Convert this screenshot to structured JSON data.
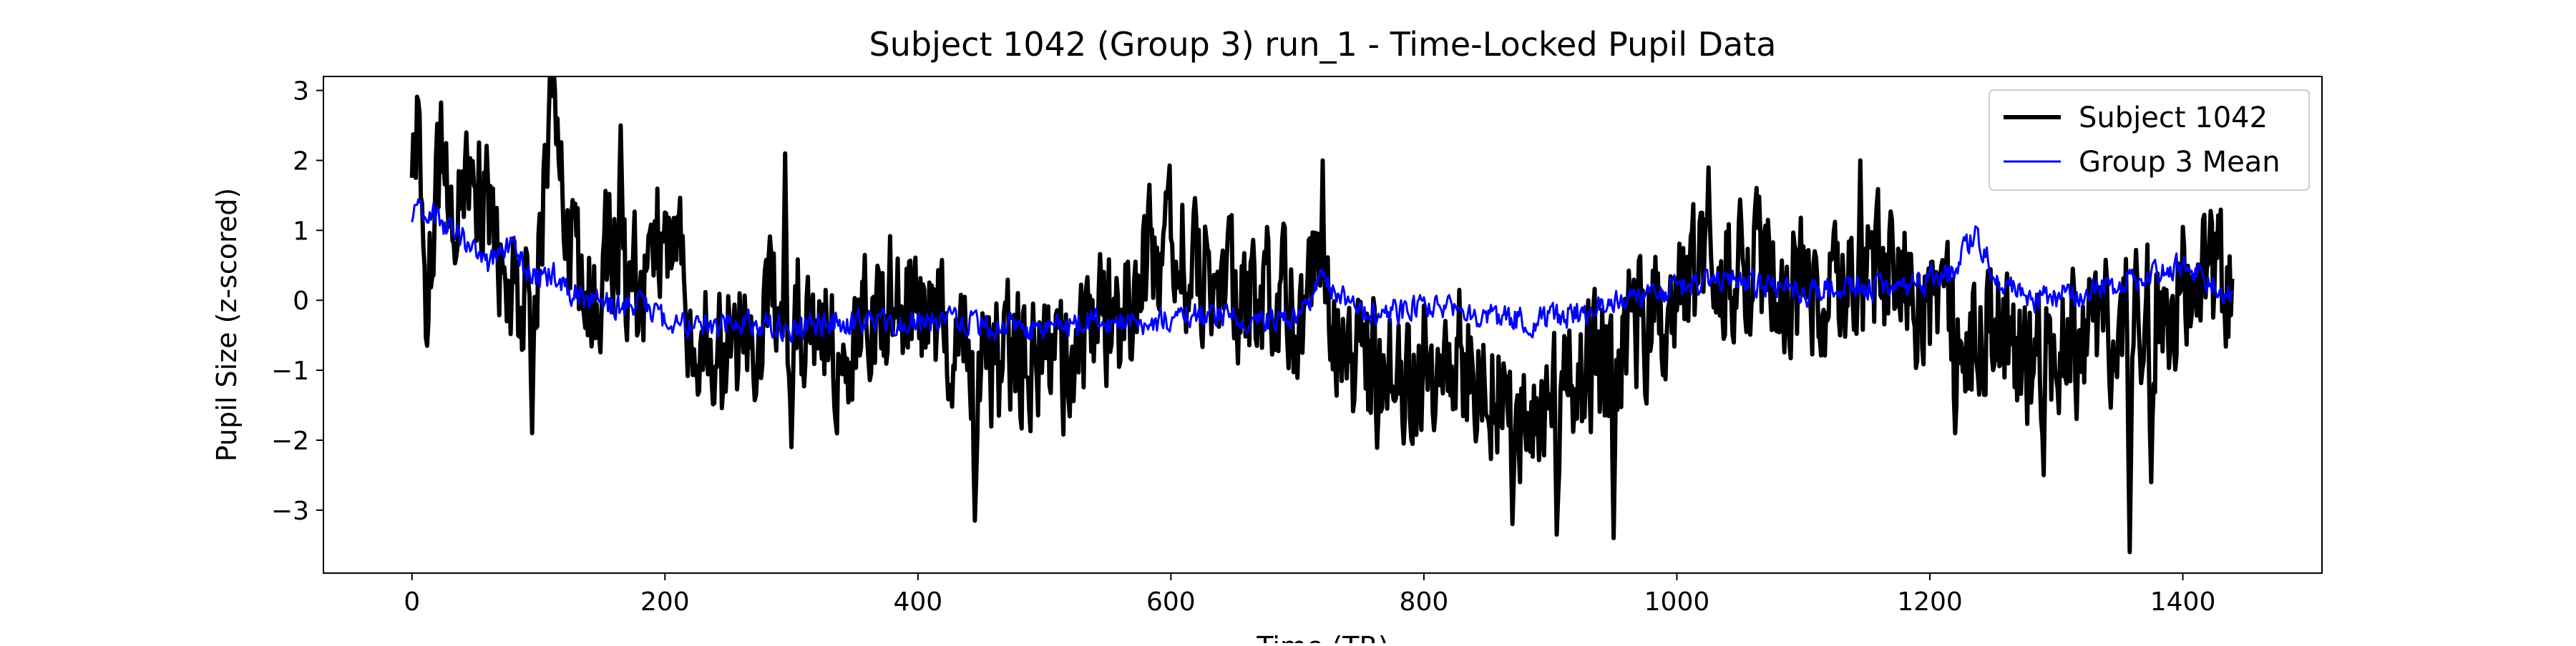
{
  "chart_data": {
    "type": "line",
    "title": "Subject 1042 (Group 3) run_1 - Time-Locked Pupil Data",
    "xlabel": "Time (TR)",
    "ylabel": "Pupil Size (z-scored)",
    "xlim": [
      -70,
      1510
    ],
    "ylim": [
      -3.9,
      3.2
    ],
    "xticks": [
      0,
      200,
      400,
      600,
      800,
      1000,
      1200,
      1400
    ],
    "yticks": [
      -3,
      -2,
      -1,
      0,
      1,
      2,
      3
    ],
    "xtick_labels": [
      "0",
      "200",
      "400",
      "600",
      "800",
      "1000",
      "1200",
      "1400"
    ],
    "ytick_labels": [
      "−3",
      "−2",
      "−1",
      "0",
      "1",
      "2",
      "3"
    ],
    "grid": false,
    "legend_position": "upper right",
    "n_points": 1440,
    "series": [
      {
        "name": "Subject 1042",
        "color": "#000000",
        "style": "thick",
        "envelope": [
          [
            0,
            1.5
          ],
          [
            5,
            2.8
          ],
          [
            12,
            -0.6
          ],
          [
            20,
            2.2
          ],
          [
            30,
            1.2
          ],
          [
            40,
            2.1
          ],
          [
            50,
            1.5
          ],
          [
            60,
            1.9
          ],
          [
            70,
            0.5
          ],
          [
            80,
            0.0
          ],
          [
            90,
            -0.3
          ],
          [
            100,
            0.4
          ],
          [
            110,
            2.5
          ],
          [
            120,
            1.5
          ],
          [
            130,
            0.5
          ],
          [
            140,
            0.0
          ],
          [
            150,
            0.5
          ],
          [
            160,
            0.8
          ],
          [
            170,
            0.2
          ],
          [
            180,
            0.3
          ],
          [
            195,
            0.9
          ],
          [
            210,
            0.5
          ],
          [
            225,
            -0.5
          ],
          [
            240,
            -1.0
          ],
          [
            260,
            -0.5
          ],
          [
            280,
            -0.2
          ],
          [
            300,
            0.0
          ],
          [
            320,
            -0.4
          ],
          [
            340,
            -0.8
          ],
          [
            360,
            -0.3
          ],
          [
            380,
            0.0
          ],
          [
            400,
            -0.2
          ],
          [
            420,
            -0.5
          ],
          [
            440,
            -0.8
          ],
          [
            460,
            -0.9
          ],
          [
            480,
            -0.7
          ],
          [
            500,
            -0.6
          ],
          [
            520,
            -1.0
          ],
          [
            540,
            -0.5
          ],
          [
            560,
            -0.2
          ],
          [
            580,
            0.4
          ],
          [
            600,
            0.8
          ],
          [
            620,
            0.5
          ],
          [
            640,
            0.1
          ],
          [
            660,
            -0.1
          ],
          [
            680,
            0.2
          ],
          [
            700,
            -0.2
          ],
          [
            715,
            0.3
          ],
          [
            730,
            -0.4
          ],
          [
            750,
            -0.8
          ],
          [
            770,
            -1.2
          ],
          [
            790,
            -1.0
          ],
          [
            810,
            -0.8
          ],
          [
            830,
            -0.8
          ],
          [
            850,
            -1.1
          ],
          [
            870,
            -1.5
          ],
          [
            890,
            -1.6
          ],
          [
            910,
            -1.4
          ],
          [
            930,
            -1.0
          ],
          [
            950,
            -0.9
          ],
          [
            970,
            -0.4
          ],
          [
            990,
            -0.2
          ],
          [
            1010,
            0.2
          ],
          [
            1030,
            0.5
          ],
          [
            1050,
            0.6
          ],
          [
            1070,
            0.4
          ],
          [
            1090,
            0.2
          ],
          [
            1110,
            0.0
          ],
          [
            1130,
            0.3
          ],
          [
            1150,
            0.5
          ],
          [
            1170,
            0.3
          ],
          [
            1190,
            0.0
          ],
          [
            1210,
            -0.2
          ],
          [
            1230,
            -0.5
          ],
          [
            1250,
            -0.4
          ],
          [
            1270,
            -0.7
          ],
          [
            1290,
            -1.0
          ],
          [
            1310,
            -0.7
          ],
          [
            1330,
            -0.5
          ],
          [
            1350,
            -0.4
          ],
          [
            1370,
            -0.2
          ],
          [
            1390,
            0.0
          ],
          [
            1410,
            0.2
          ],
          [
            1425,
            0.4
          ],
          [
            1438,
            0.1
          ]
        ],
        "fluctuation_amplitude": 1.2,
        "peaks": [
          [
            5,
            2.85
          ],
          [
            12,
            -0.65
          ],
          [
            75,
            -0.3
          ],
          [
            95,
            -1.9
          ],
          [
            115,
            2.6
          ],
          [
            165,
            2.5
          ],
          [
            295,
            2.1
          ],
          [
            300,
            -2.1
          ],
          [
            445,
            -3.15
          ],
          [
            720,
            2.0
          ],
          [
            870,
            -3.2
          ],
          [
            905,
            -3.35
          ],
          [
            950,
            -3.4
          ],
          [
            1025,
            1.9
          ],
          [
            1145,
            2.0
          ],
          [
            1220,
            -1.9
          ],
          [
            1290,
            -2.5
          ],
          [
            1358,
            -3.6
          ],
          [
            1375,
            -2.6
          ],
          [
            1400,
            1.05
          ]
        ]
      },
      {
        "name": "Group 3 Mean",
        "color": "#0000ff",
        "style": "thin",
        "envelope": [
          [
            0,
            1.15
          ],
          [
            10,
            1.3
          ],
          [
            20,
            1.2
          ],
          [
            30,
            1.0
          ],
          [
            40,
            0.9
          ],
          [
            50,
            0.7
          ],
          [
            60,
            0.5
          ],
          [
            70,
            0.6
          ],
          [
            80,
            0.9
          ],
          [
            90,
            0.4
          ],
          [
            100,
            0.3
          ],
          [
            110,
            0.4
          ],
          [
            120,
            0.2
          ],
          [
            140,
            0.0
          ],
          [
            160,
            -0.1
          ],
          [
            180,
            0.0
          ],
          [
            200,
            -0.3
          ],
          [
            230,
            -0.4
          ],
          [
            260,
            -0.3
          ],
          [
            300,
            -0.4
          ],
          [
            340,
            -0.3
          ],
          [
            380,
            -0.3
          ],
          [
            420,
            -0.3
          ],
          [
            460,
            -0.4
          ],
          [
            500,
            -0.4
          ],
          [
            540,
            -0.3
          ],
          [
            580,
            -0.3
          ],
          [
            620,
            -0.2
          ],
          [
            660,
            -0.3
          ],
          [
            700,
            -0.3
          ],
          [
            720,
            0.3
          ],
          [
            740,
            0.0
          ],
          [
            760,
            -0.2
          ],
          [
            800,
            -0.1
          ],
          [
            840,
            -0.2
          ],
          [
            880,
            -0.3
          ],
          [
            920,
            -0.2
          ],
          [
            960,
            0.0
          ],
          [
            1000,
            0.2
          ],
          [
            1040,
            0.3
          ],
          [
            1080,
            0.2
          ],
          [
            1100,
            0.1
          ],
          [
            1140,
            0.2
          ],
          [
            1180,
            0.2
          ],
          [
            1220,
            0.4
          ],
          [
            1235,
            1.0
          ],
          [
            1250,
            0.4
          ],
          [
            1280,
            0.0
          ],
          [
            1320,
            0.1
          ],
          [
            1360,
            0.3
          ],
          [
            1400,
            0.5
          ],
          [
            1420,
            0.3
          ],
          [
            1438,
            0.05
          ]
        ],
        "fluctuation_amplitude": 0.22
      }
    ]
  }
}
